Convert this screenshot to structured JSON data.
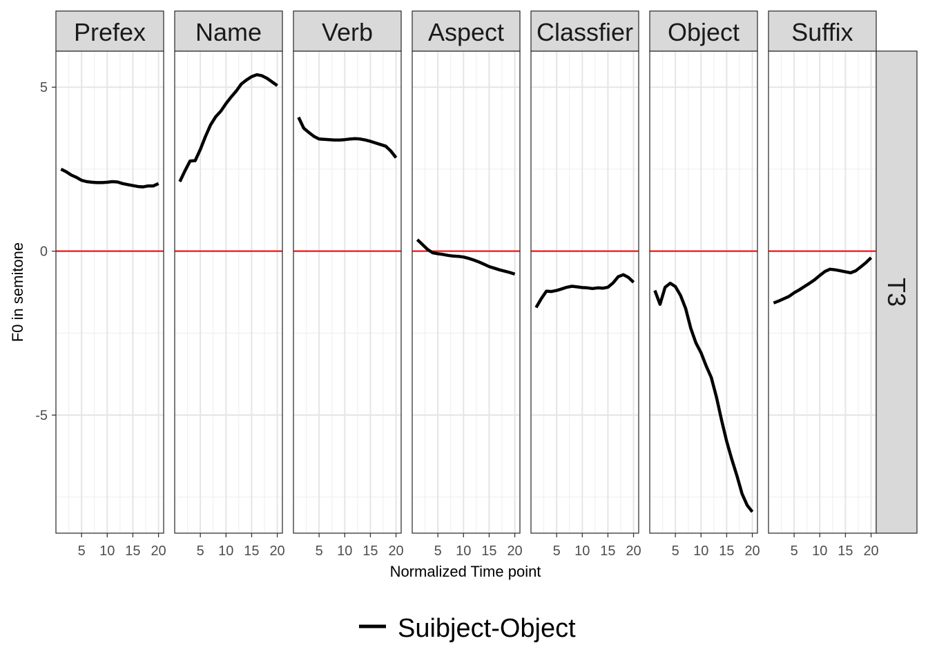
{
  "chart_data": {
    "type": "line",
    "xlabel": "Normalized Time point",
    "ylabel": "F0 in semitone",
    "xlim": [
      0,
      21
    ],
    "ylim": [
      -8.6,
      6.1
    ],
    "x_ticks": [
      5,
      10,
      15,
      20
    ],
    "y_ticks": [
      5,
      0,
      -5
    ],
    "y_tick_labels": [
      "5",
      "0",
      "-5"
    ],
    "grid": true,
    "reference_line": {
      "y": 0,
      "color": "#e41a1c"
    },
    "row_strip": "T3",
    "legend": {
      "position": "bottom",
      "entries": [
        "Suibject-Object"
      ]
    },
    "line_color": "#000000",
    "panels": [
      {
        "name": "Prefex",
        "series": [
          {
            "name": "Suibject-Object",
            "x": [
              1,
              2,
              3,
              4,
              5,
              6,
              7,
              8,
              9,
              10,
              11,
              12,
              13,
              14,
              15,
              16,
              17,
              18,
              19,
              20
            ],
            "values": [
              2.5,
              2.42,
              2.32,
              2.25,
              2.16,
              2.12,
              2.1,
              2.09,
              2.09,
              2.1,
              2.12,
              2.11,
              2.06,
              2.03,
              2.0,
              1.97,
              1.96,
              1.99,
              1.99,
              2.06
            ]
          }
        ]
      },
      {
        "name": "Name",
        "series": [
          {
            "name": "Suibject-Object",
            "x": [
              1,
              2,
              3,
              4,
              5,
              6,
              7,
              8,
              9,
              10,
              11,
              12,
              13,
              14,
              15,
              16,
              17,
              18,
              19,
              20
            ],
            "values": [
              2.12,
              2.45,
              2.75,
              2.76,
              3.1,
              3.5,
              3.85,
              4.1,
              4.27,
              4.5,
              4.7,
              4.88,
              5.1,
              5.22,
              5.32,
              5.38,
              5.35,
              5.27,
              5.16,
              5.05
            ]
          }
        ]
      },
      {
        "name": "Verb",
        "series": [
          {
            "name": "Suibject-Object",
            "x": [
              1,
              2,
              3,
              4,
              5,
              6,
              7,
              8,
              9,
              10,
              11,
              12,
              13,
              14,
              15,
              16,
              17,
              18,
              19,
              20
            ],
            "values": [
              4.08,
              3.75,
              3.62,
              3.5,
              3.42,
              3.41,
              3.4,
              3.39,
              3.39,
              3.4,
              3.42,
              3.43,
              3.42,
              3.39,
              3.35,
              3.3,
              3.25,
              3.2,
              3.05,
              2.85
            ]
          }
        ]
      },
      {
        "name": "Aspect",
        "series": [
          {
            "name": "Suibject-Object",
            "x": [
              1,
              2,
              3,
              4,
              5,
              6,
              7,
              8,
              9,
              10,
              11,
              12,
              13,
              14,
              15,
              16,
              17,
              18,
              19,
              20
            ],
            "values": [
              0.35,
              0.2,
              0.05,
              -0.05,
              -0.08,
              -0.1,
              -0.13,
              -0.15,
              -0.16,
              -0.18,
              -0.22,
              -0.27,
              -0.33,
              -0.4,
              -0.47,
              -0.52,
              -0.57,
              -0.61,
              -0.65,
              -0.7
            ]
          }
        ]
      },
      {
        "name": "Classfier",
        "series": [
          {
            "name": "Suibject-Object",
            "x": [
              1,
              2,
              3,
              4,
              5,
              6,
              7,
              8,
              9,
              10,
              11,
              12,
              13,
              14,
              15,
              16,
              17,
              18,
              19,
              20
            ],
            "values": [
              -1.72,
              -1.45,
              -1.22,
              -1.23,
              -1.2,
              -1.15,
              -1.1,
              -1.07,
              -1.09,
              -1.11,
              -1.12,
              -1.14,
              -1.12,
              -1.13,
              -1.1,
              -0.97,
              -0.78,
              -0.72,
              -0.8,
              -0.95
            ]
          }
        ]
      },
      {
        "name": "Object",
        "series": [
          {
            "name": "Suibject-Object",
            "x": [
              1,
              2,
              3,
              4,
              5,
              6,
              7,
              8,
              9,
              10,
              11,
              12,
              13,
              14,
              15,
              16,
              17,
              18,
              19,
              20
            ],
            "values": [
              -1.2,
              -1.62,
              -1.1,
              -0.98,
              -1.08,
              -1.35,
              -1.75,
              -2.35,
              -2.8,
              -3.1,
              -3.5,
              -3.85,
              -4.45,
              -5.15,
              -5.8,
              -6.35,
              -6.85,
              -7.4,
              -7.75,
              -7.95
            ]
          }
        ]
      },
      {
        "name": "Suffix",
        "series": [
          {
            "name": "Suibject-Object",
            "x": [
              1,
              2,
              3,
              4,
              5,
              6,
              7,
              8,
              9,
              10,
              11,
              12,
              13,
              14,
              15,
              16,
              17,
              18,
              19,
              20
            ],
            "values": [
              -1.58,
              -1.52,
              -1.45,
              -1.38,
              -1.27,
              -1.18,
              -1.08,
              -0.98,
              -0.87,
              -0.74,
              -0.62,
              -0.55,
              -0.57,
              -0.6,
              -0.63,
              -0.66,
              -0.6,
              -0.48,
              -0.35,
              -0.2
            ]
          }
        ]
      }
    ]
  }
}
